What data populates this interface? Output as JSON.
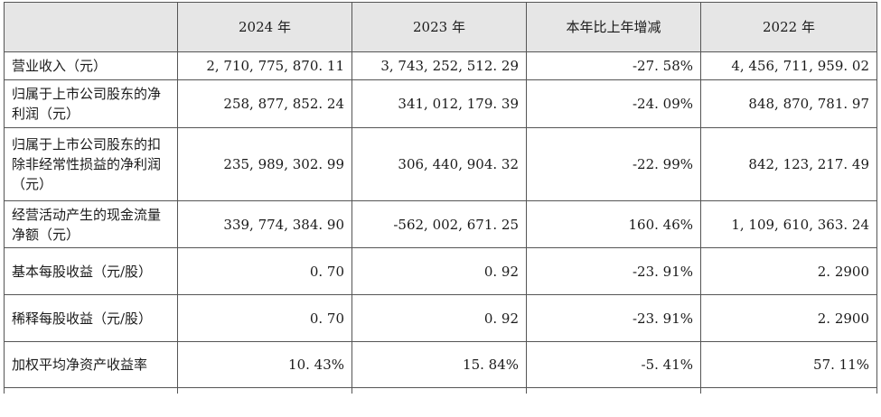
{
  "table": {
    "headers": [
      "",
      "2024 年",
      "2023 年",
      "本年比上年增减",
      "2022 年"
    ],
    "rows": [
      {
        "label": "营业收入（元）",
        "v2024": "2, 710, 775, 870. 11",
        "v2023": "3, 743, 252, 512. 29",
        "change": "-27. 58%",
        "v2022": "4, 456, 711, 959. 02"
      },
      {
        "label": "归属于上市公司股东的净利润（元）",
        "v2024": "258, 877, 852. 24",
        "v2023": "341, 012, 179. 39",
        "change": "-24. 09%",
        "v2022": "848, 870, 781. 97"
      },
      {
        "label": "归属于上市公司股东的扣除非经常性损益的净利润（元）",
        "v2024": "235, 989, 302. 99",
        "v2023": "306, 440, 904. 32",
        "change": "-22. 99%",
        "v2022": "842, 123, 217. 49"
      },
      {
        "label": "经营活动产生的现金流量净额（元）",
        "v2024": "339, 774, 384. 90",
        "v2023": "-562, 002, 671. 25",
        "change": "160. 46%",
        "v2022": "1, 109, 610, 363. 24"
      },
      {
        "label": "基本每股收益（元/股）",
        "v2024": "0. 70",
        "v2023": "0. 92",
        "change": "-23. 91%",
        "v2022": "2. 2900"
      },
      {
        "label": "稀释每股收益（元/股）",
        "v2024": "0. 70",
        "v2023": "0. 92",
        "change": "-23. 91%",
        "v2022": "2. 2900"
      },
      {
        "label": "加权平均净资产收益率",
        "v2024": "10. 43%",
        "v2023": "15. 84%",
        "change": "-5. 41%",
        "v2022": "57. 11%"
      }
    ]
  }
}
